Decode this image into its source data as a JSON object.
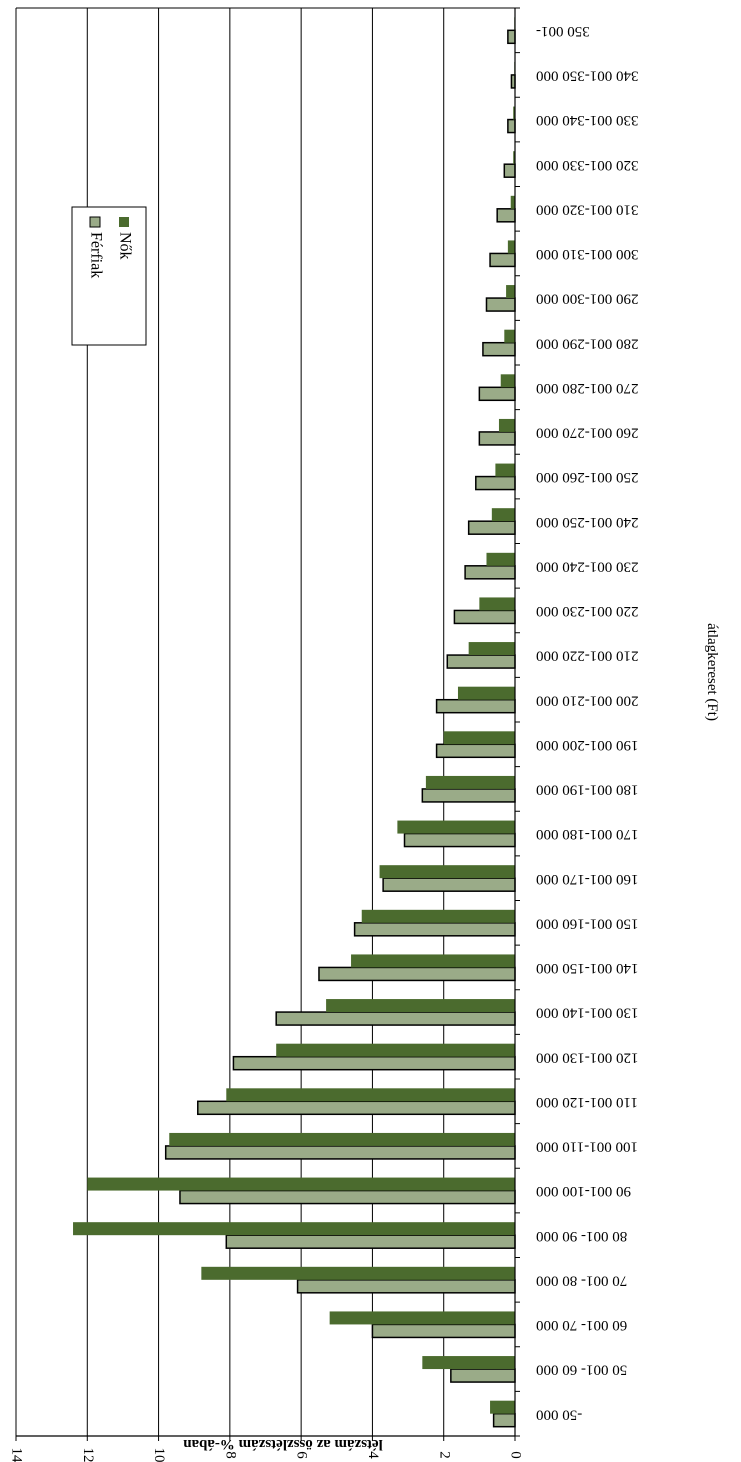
{
  "chart_data": {
    "type": "bar",
    "orientation": "rotated-90-clockwise",
    "title": "",
    "xlabel": "átlagkereset (Ft)",
    "ylabel": "létszám az összlétszám %-ában",
    "ylim": [
      0,
      14
    ],
    "yticks": [
      0,
      2,
      4,
      6,
      8,
      10,
      12,
      14
    ],
    "grid": true,
    "legend_position": "top-left",
    "categories": [
      "-50 000",
      "50 001- 60 000",
      "60 001- 70 000",
      "70 001- 80 000",
      "80 001- 90 000",
      "90 001-100 000",
      "100 001-110 000",
      "110 001-120 000",
      "120 001-130 000",
      "130 001-140 000",
      "140 001-150 000",
      "150 001-160 000",
      "160 001-170 000",
      "170 001-180 000",
      "180 001-190 000",
      "190 001-200 000",
      "200 001-210 000",
      "210 001-220 000",
      "220 001-230 000",
      "230 001-240 000",
      "240 001-250 000",
      "250 001-260 000",
      "260 001-270 000",
      "270 001-280 000",
      "280 001-290 000",
      "290 001-300 000",
      "300 001-310 000",
      "310 001-320 000",
      "320 001-330 000",
      "330 001-340 000",
      "340 001-350 000",
      "350 001-"
    ],
    "series": [
      {
        "name": "Férfiak",
        "color": "#9aab88",
        "values": [
          0.6,
          1.8,
          4.0,
          6.1,
          8.1,
          9.4,
          9.8,
          8.9,
          7.9,
          6.7,
          5.5,
          4.5,
          3.7,
          3.1,
          2.6,
          2.2,
          2.2,
          1.9,
          1.7,
          1.4,
          1.3,
          1.1,
          1.0,
          1.0,
          0.9,
          0.8,
          0.7,
          0.5,
          0.3,
          0.2,
          0.1,
          0.2
        ]
      },
      {
        "name": "Nők",
        "color": "#4b6b2e",
        "values": [
          0.7,
          2.6,
          5.2,
          8.8,
          12.4,
          12.0,
          9.7,
          8.1,
          6.7,
          5.3,
          4.6,
          4.3,
          3.8,
          3.3,
          2.5,
          2.0,
          1.6,
          1.3,
          1.0,
          0.8,
          0.65,
          0.55,
          0.45,
          0.4,
          0.3,
          0.25,
          0.2,
          0.12,
          0.05,
          0.05,
          0.02,
          0.02
        ]
      }
    ]
  }
}
